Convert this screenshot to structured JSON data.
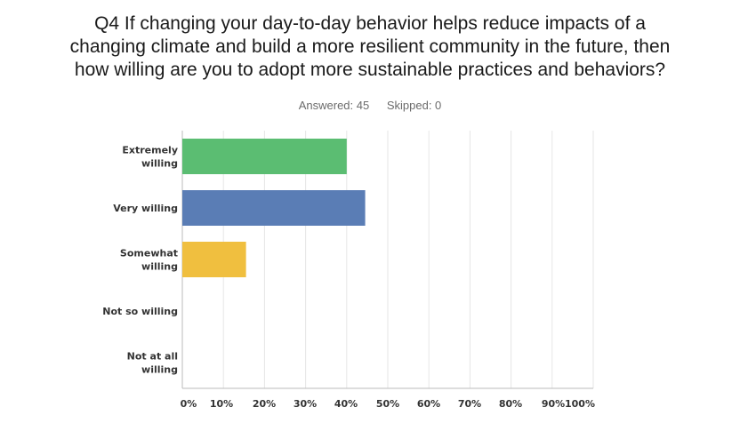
{
  "title_lines": [
    "Q4 If changing your day-to-day behavior helps reduce impacts of a",
    "changing climate and build a more resilient community in the future, then",
    "how willing are you to adopt more sustainable practices and behaviors?"
  ],
  "answered": "Answered: 45",
  "skipped": "Skipped: 0",
  "colors": {
    "extremely": "#5bbd72",
    "very": "#5a7db5",
    "somewhat": "#f0bf3f",
    "grid": "#e6e6e6",
    "axis": "#bbbbbb"
  },
  "chart_data": {
    "type": "bar",
    "orientation": "horizontal",
    "categories": [
      [
        "Extremely",
        "willing"
      ],
      [
        "Very willing"
      ],
      [
        "Somewhat",
        "willing"
      ],
      [
        "Not so willing"
      ],
      [
        "Not at all",
        "willing"
      ]
    ],
    "values": [
      40,
      44.5,
      15.5,
      0,
      0
    ],
    "bar_colors": [
      "#5bbd72",
      "#5a7db5",
      "#f0bf3f",
      "#5bbd72",
      "#5bbd72"
    ],
    "x_ticks": [
      "0%",
      "10%",
      "20%",
      "30%",
      "40%",
      "50%",
      "60%",
      "70%",
      "80%",
      "90%",
      "100%"
    ],
    "xlim": [
      0,
      100
    ],
    "grid": true,
    "legend": "none"
  }
}
